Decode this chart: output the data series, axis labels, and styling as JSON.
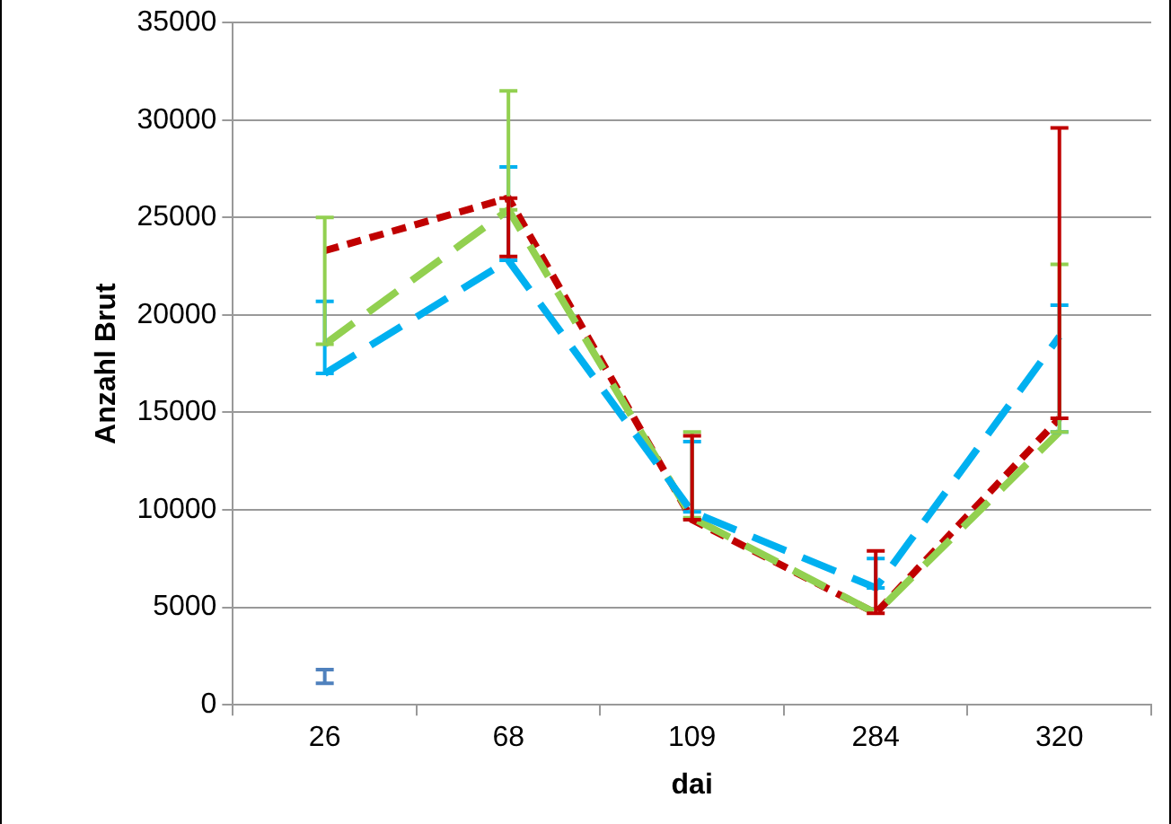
{
  "chart_data": {
    "type": "line",
    "xlabel": "dai",
    "ylabel": "Anzahl Brut",
    "categories": [
      "26",
      "68",
      "109",
      "284",
      "320"
    ],
    "ylim": [
      0,
      35000
    ],
    "yticks": [
      0,
      5000,
      10000,
      15000,
      20000,
      25000,
      30000,
      35000
    ],
    "grid": "y",
    "legend": false,
    "series": [
      {
        "color": "#00b0f0",
        "line_style": "dashed",
        "values": [
          17000,
          22800,
          9900,
          6000,
          18900
        ],
        "errors": [
          [
            17000,
            20700
          ],
          [
            22800,
            27600
          ],
          [
            9900,
            13500
          ],
          [
            6000,
            7500
          ],
          [
            14000,
            20500
          ]
        ]
      },
      {
        "color": "#92d050",
        "line_style": "dashed",
        "values": [
          18500,
          25400,
          9600,
          4700,
          14000
        ],
        "errors": [
          [
            18500,
            25000
          ],
          [
            25400,
            31500
          ],
          [
            9600,
            14000
          ],
          null,
          [
            14000,
            22600
          ]
        ]
      },
      {
        "color": "#c00000",
        "line_style": "dotted",
        "values": [
          23300,
          26000,
          9500,
          4700,
          14700
        ],
        "errors": [
          null,
          [
            23000,
            26000
          ],
          [
            9500,
            13800
          ],
          [
            4700,
            7900
          ],
          [
            14700,
            29600
          ]
        ]
      },
      {
        "type": "scatter",
        "color": "#4f81bd",
        "values": [
          1500,
          null,
          null,
          null,
          null
        ],
        "errors": [
          [
            1100,
            1800
          ],
          null,
          null,
          null,
          null
        ]
      }
    ]
  }
}
